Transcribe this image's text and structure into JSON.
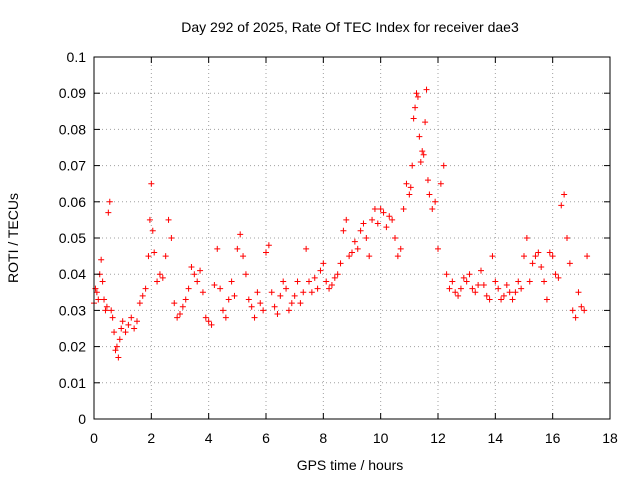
{
  "chart_data": {
    "type": "scatter",
    "title": "Day 292 of 2025, Rate Of TEC Index for receiver dae3",
    "xlabel": "GPS time / hours",
    "ylabel": "ROTI / TECUs",
    "xlim": [
      0,
      18
    ],
    "ylim": [
      0,
      0.1
    ],
    "x_ticks": [
      0,
      2,
      4,
      6,
      8,
      10,
      12,
      14,
      16,
      18
    ],
    "y_ticks": [
      0,
      0.01,
      0.02,
      0.03,
      0.04,
      0.05,
      0.06,
      0.07,
      0.08,
      0.09,
      0.1
    ],
    "x_tick_labels": [
      "0",
      "2",
      "4",
      "6",
      "8",
      "10",
      "12",
      "14",
      "16",
      "18"
    ],
    "y_tick_labels": [
      "0",
      "0.01",
      "0.02",
      "0.03",
      "0.04",
      "0.05",
      "0.06",
      "0.07",
      "0.08",
      "0.09",
      "0.1"
    ],
    "grid": true,
    "marker": "+",
    "series_color": "#ff0000",
    "series": [
      {
        "x": [
          0.0,
          0.05,
          0.1,
          0.15,
          0.2,
          0.25,
          0.3,
          0.35,
          0.4,
          0.45,
          0.5,
          0.55,
          0.6,
          0.65,
          0.7,
          0.75,
          0.8,
          0.85,
          0.9,
          0.95,
          1.0,
          1.1,
          1.2,
          1.3,
          1.4,
          1.5,
          1.6,
          1.7,
          1.8,
          1.9,
          1.95,
          2.0,
          2.05,
          2.1,
          2.2,
          2.3,
          2.4,
          2.5,
          2.6,
          2.7,
          2.8,
          2.9,
          3.0,
          3.1,
          3.2,
          3.3,
          3.4,
          3.5,
          3.6,
          3.7,
          3.8,
          3.9,
          4.0,
          4.1,
          4.2,
          4.3,
          4.4,
          4.5,
          4.6,
          4.7,
          4.8,
          4.9,
          5.0,
          5.1,
          5.2,
          5.3,
          5.4,
          5.5,
          5.6,
          5.7,
          5.8,
          5.9,
          6.0,
          6.1,
          6.2,
          6.3,
          6.4,
          6.5,
          6.6,
          6.7,
          6.8,
          6.9,
          7.0,
          7.1,
          7.2,
          7.3,
          7.4,
          7.5,
          7.6,
          7.7,
          7.8,
          7.9,
          8.0,
          8.1,
          8.2,
          8.3,
          8.4,
          8.5,
          8.6,
          8.7,
          8.8,
          8.9,
          9.0,
          9.1,
          9.2,
          9.3,
          9.4,
          9.5,
          9.6,
          9.7,
          9.8,
          9.9,
          10.0,
          10.1,
          10.2,
          10.3,
          10.4,
          10.5,
          10.6,
          10.7,
          10.8,
          10.9,
          11.0,
          11.05,
          11.1,
          11.15,
          11.2,
          11.25,
          11.3,
          11.35,
          11.4,
          11.45,
          11.5,
          11.55,
          11.6,
          11.65,
          11.7,
          11.8,
          11.9,
          12.0,
          12.1,
          12.2,
          12.3,
          12.4,
          12.5,
          12.6,
          12.7,
          12.8,
          12.9,
          13.0,
          13.1,
          13.2,
          13.3,
          13.4,
          13.5,
          13.6,
          13.7,
          13.8,
          13.9,
          14.0,
          14.1,
          14.2,
          14.3,
          14.4,
          14.5,
          14.6,
          14.7,
          14.8,
          14.9,
          15.0,
          15.1,
          15.2,
          15.3,
          15.4,
          15.5,
          15.6,
          15.7,
          15.8,
          15.9,
          16.0,
          16.1,
          16.2,
          16.3,
          16.4,
          16.5,
          16.6,
          16.7,
          16.8,
          16.9,
          17.0,
          17.1,
          17.2
        ],
        "y": [
          0.032,
          0.036,
          0.035,
          0.033,
          0.04,
          0.044,
          0.038,
          0.033,
          0.03,
          0.031,
          0.057,
          0.06,
          0.03,
          0.028,
          0.024,
          0.019,
          0.02,
          0.017,
          0.022,
          0.025,
          0.027,
          0.024,
          0.026,
          0.028,
          0.025,
          0.027,
          0.032,
          0.034,
          0.036,
          0.045,
          0.055,
          0.065,
          0.052,
          0.046,
          0.038,
          0.04,
          0.039,
          0.045,
          0.055,
          0.05,
          0.032,
          0.028,
          0.029,
          0.031,
          0.033,
          0.036,
          0.042,
          0.04,
          0.038,
          0.041,
          0.035,
          0.028,
          0.027,
          0.026,
          0.037,
          0.047,
          0.036,
          0.03,
          0.028,
          0.033,
          0.038,
          0.034,
          0.047,
          0.051,
          0.045,
          0.04,
          0.033,
          0.031,
          0.028,
          0.035,
          0.032,
          0.03,
          0.046,
          0.048,
          0.035,
          0.031,
          0.029,
          0.034,
          0.038,
          0.036,
          0.03,
          0.032,
          0.034,
          0.038,
          0.032,
          0.035,
          0.047,
          0.038,
          0.035,
          0.039,
          0.036,
          0.041,
          0.043,
          0.038,
          0.036,
          0.037,
          0.039,
          0.04,
          0.043,
          0.052,
          0.055,
          0.045,
          0.046,
          0.049,
          0.047,
          0.052,
          0.054,
          0.05,
          0.045,
          0.055,
          0.058,
          0.054,
          0.058,
          0.057,
          0.053,
          0.056,
          0.055,
          0.05,
          0.045,
          0.047,
          0.058,
          0.065,
          0.062,
          0.064,
          0.07,
          0.083,
          0.086,
          0.09,
          0.089,
          0.078,
          0.071,
          0.074,
          0.073,
          0.082,
          0.091,
          0.066,
          0.062,
          0.058,
          0.06,
          0.047,
          0.065,
          0.07,
          0.04,
          0.036,
          0.038,
          0.035,
          0.034,
          0.036,
          0.039,
          0.038,
          0.04,
          0.036,
          0.035,
          0.037,
          0.041,
          0.037,
          0.034,
          0.033,
          0.045,
          0.038,
          0.036,
          0.033,
          0.034,
          0.037,
          0.035,
          0.033,
          0.035,
          0.038,
          0.036,
          0.045,
          0.05,
          0.038,
          0.043,
          0.045,
          0.046,
          0.042,
          0.038,
          0.033,
          0.046,
          0.045,
          0.04,
          0.039,
          0.059,
          0.062,
          0.05,
          0.043,
          0.03,
          0.028,
          0.035,
          0.031,
          0.03,
          0.045
        ]
      }
    ]
  }
}
